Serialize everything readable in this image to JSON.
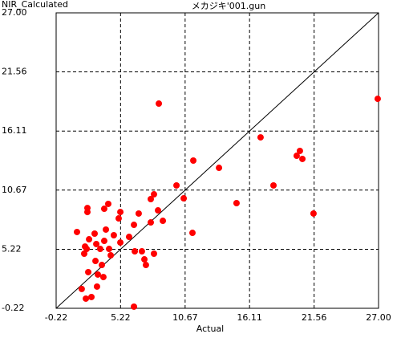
{
  "chart_data": {
    "type": "scatter",
    "title": "メカジキ'001.gun",
    "xlabel": "Actual",
    "ylabel": "NIR_Calculated",
    "color": "#ff0000",
    "grid": true,
    "xlim": [
      -0.22,
      27
    ],
    "ylim": [
      -0.22,
      27
    ],
    "xticks": [
      -0.22,
      5.22,
      10.67,
      16.11,
      21.56,
      {
        "value": 27,
        "label": "27.00"
      }
    ],
    "yticks": [
      -0.22,
      5.22,
      10.67,
      16.11,
      21.56,
      {
        "value": 27,
        "label": "27.00"
      }
    ],
    "x": [
      8.45,
      26.93,
      17.04,
      20.36,
      20.09,
      20.57,
      11.36,
      13.53,
      18.13,
      9.94,
      10.55,
      8.04,
      7.77,
      15.01,
      21.51,
      4.18,
      2.42,
      2.42,
      3.84,
      6.75,
      5.2,
      8.38,
      5.06,
      8.79,
      7.77,
      6.35,
      1.54,
      3.98,
      3.03,
      11.29,
      4.65,
      5.94,
      2.56,
      3.84,
      5.2,
      3.17,
      2.22,
      2.36,
      4.25,
      3.5,
      6.42,
      7.02,
      8.04,
      2.15,
      4.39,
      7.23,
      3.1,
      3.64,
      7.36,
      2.49,
      3.3,
      3.77,
      3.23,
      1.94,
      2.76,
      2.29,
      6.35
    ],
    "y": [
      18.64,
      19.08,
      15.53,
      14.28,
      13.83,
      13.54,
      13.39,
      12.72,
      11.1,
      11.1,
      9.91,
      10.28,
      9.84,
      9.47,
      8.51,
      9.4,
      9.02,
      8.65,
      8.95,
      8.51,
      8.65,
      8.8,
      8.06,
      7.84,
      7.69,
      7.47,
      6.81,
      7.03,
      6.66,
      6.73,
      6.51,
      6.36,
      6.14,
      5.99,
      5.84,
      5.7,
      5.47,
      5.25,
      5.25,
      5.25,
      5.03,
      5.03,
      4.81,
      4.81,
      4.66,
      4.29,
      4.14,
      3.77,
      3.77,
      3.11,
      2.89,
      2.66,
      1.78,
      1.56,
      0.82,
      0.67,
      -0.07
    ]
  }
}
